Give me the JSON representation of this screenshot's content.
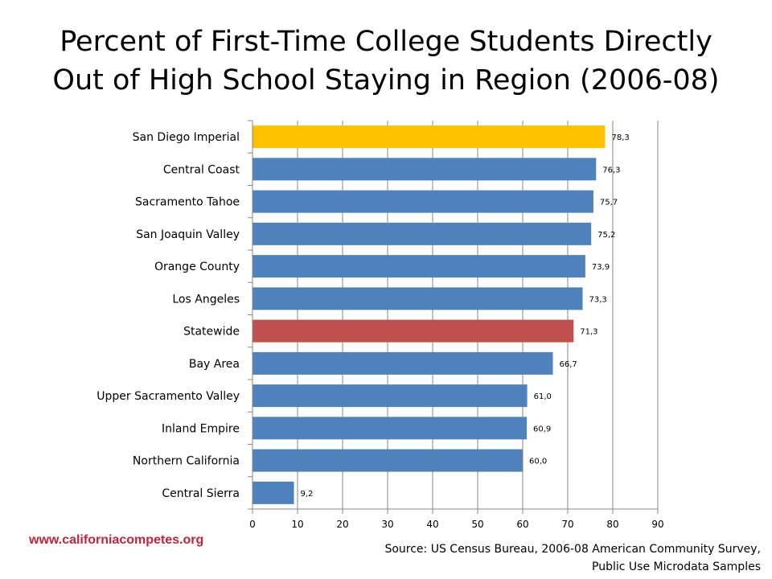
{
  "title_line1": "Percent of First-Time College Students Directly",
  "title_line2": "Out of High School Staying in Region (2006-08)",
  "website": "www.californiacompetes.org",
  "source_line1": "Source: US Census Bureau, 2006-08 American Community Survey,",
  "source_line2": "Public Use Microdata Samples",
  "colors": {
    "default": "#4f81bd",
    "highlight": "#ffc000",
    "statewide": "#c0504d"
  },
  "chart_data": {
    "type": "bar",
    "orientation": "horizontal",
    "categories": [
      "San Diego Imperial",
      "Central Coast",
      "Sacramento Tahoe",
      "San Joaquin Valley",
      "Orange County",
      "Los Angeles",
      "Statewide",
      "Bay Area",
      "Upper Sacramento Valley",
      "Inland Empire",
      "Northern California",
      "Central Sierra"
    ],
    "values": [
      78.3,
      76.3,
      75.7,
      75.2,
      73.9,
      73.3,
      71.3,
      66.7,
      61.0,
      60.9,
      60.0,
      9.2
    ],
    "value_labels": [
      "78,3",
      "76,3",
      "75,7",
      "75,2",
      "73,9",
      "73,3",
      "71,3",
      "66,7",
      "61,0",
      "60,9",
      "60,0",
      "9,2"
    ],
    "bar_colors": [
      "#ffc000",
      "#4f81bd",
      "#4f81bd",
      "#4f81bd",
      "#4f81bd",
      "#4f81bd",
      "#c0504d",
      "#4f81bd",
      "#4f81bd",
      "#4f81bd",
      "#4f81bd",
      "#4f81bd"
    ],
    "xlim": [
      0,
      90
    ],
    "xticks": [
      0,
      10,
      20,
      30,
      40,
      50,
      60,
      70,
      80,
      90
    ],
    "grid": "vertical",
    "legend": "none",
    "xlabel": "",
    "ylabel": ""
  }
}
